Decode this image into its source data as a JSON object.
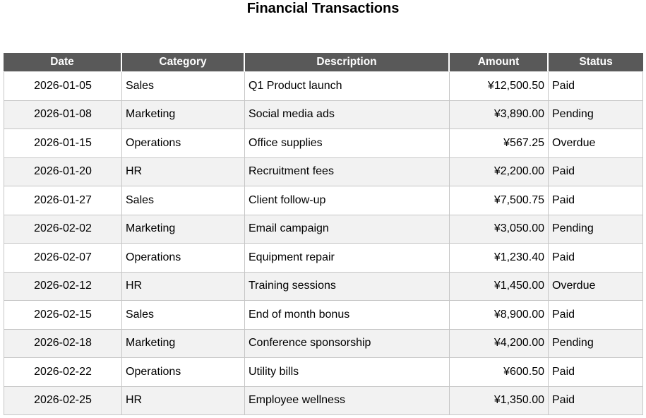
{
  "title": "Financial Transactions",
  "colors": {
    "header_bg": "#595959",
    "header_text": "#ffffff",
    "row_stripe": "#f2f2f2",
    "grid_border": "#c6c6c6"
  },
  "chart_data": {
    "type": "table",
    "title": "Financial Transactions",
    "columns": [
      "Date",
      "Category",
      "Description",
      "Amount",
      "Status"
    ],
    "column_alignments": [
      "center",
      "left",
      "left",
      "right",
      "left"
    ],
    "rows": [
      [
        "2026-01-05",
        "Sales",
        "Q1 Product launch",
        "¥12,500.50",
        "Paid"
      ],
      [
        "2026-01-08",
        "Marketing",
        "Social media ads",
        "¥3,890.00",
        "Pending"
      ],
      [
        "2026-01-15",
        "Operations",
        "Office supplies",
        "¥567.25",
        "Overdue"
      ],
      [
        "2026-01-20",
        "HR",
        "Recruitment fees",
        "¥2,200.00",
        "Paid"
      ],
      [
        "2026-01-27",
        "Sales",
        "Client follow-up",
        "¥7,500.75",
        "Paid"
      ],
      [
        "2026-02-02",
        "Marketing",
        "Email campaign",
        "¥3,050.00",
        "Pending"
      ],
      [
        "2026-02-07",
        "Operations",
        "Equipment repair",
        "¥1,230.40",
        "Paid"
      ],
      [
        "2026-02-12",
        "HR",
        "Training sessions",
        "¥1,450.00",
        "Overdue"
      ],
      [
        "2026-02-15",
        "Sales",
        "End of month bonus",
        "¥8,900.00",
        "Paid"
      ],
      [
        "2026-02-18",
        "Marketing",
        "Conference sponsorship",
        "¥4,200.00",
        "Pending"
      ],
      [
        "2026-02-22",
        "Operations",
        "Utility bills",
        "¥600.50",
        "Paid"
      ],
      [
        "2026-02-25",
        "HR",
        "Employee wellness",
        "¥1,350.00",
        "Paid"
      ]
    ]
  }
}
